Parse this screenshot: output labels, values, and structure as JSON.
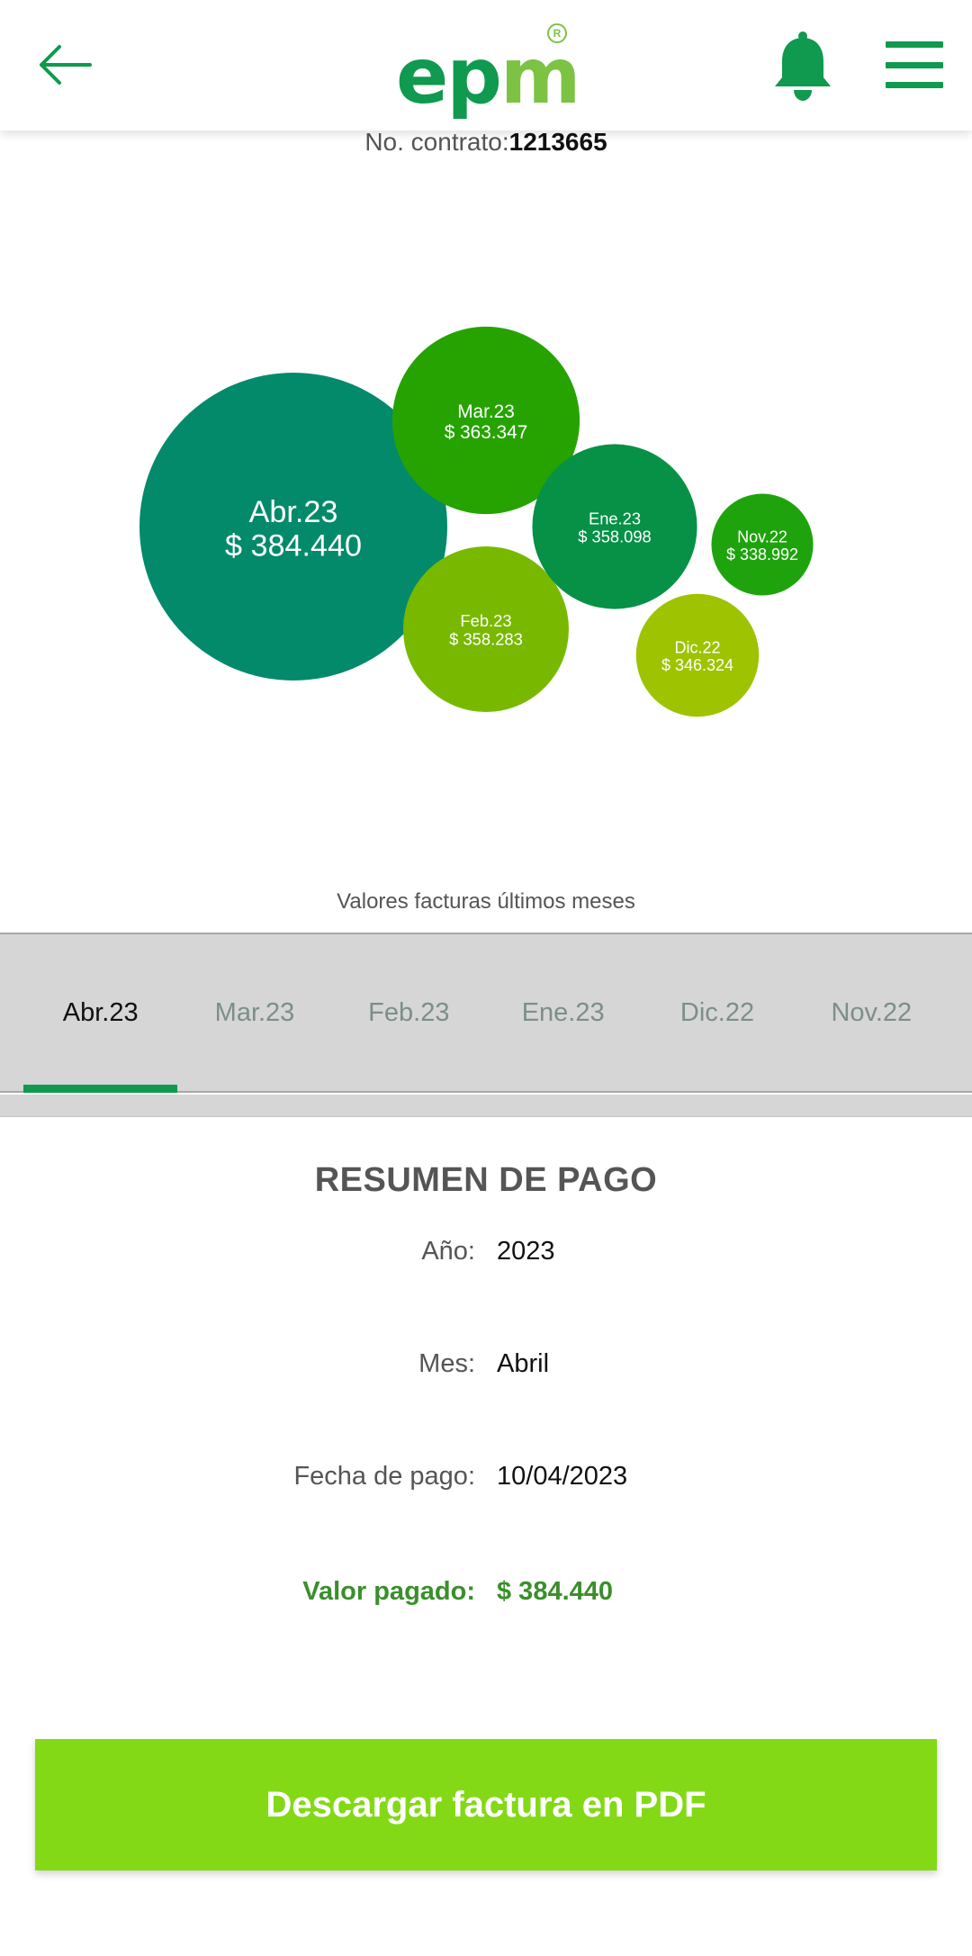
{
  "header": {
    "back_icon": "arrow-left-icon",
    "logo_text": "epm",
    "logo_registered": "R",
    "notifications_icon": "bell-icon",
    "menu_icon": "hamburger-menu-icon",
    "brand_color": "#0f9a4f",
    "accent_color": "#7cc243"
  },
  "contract": {
    "label": "No. contrato:",
    "number": "1213665"
  },
  "chart_data": {
    "type": "bubble",
    "caption": "Valores facturas últimos meses",
    "points": [
      {
        "month": "Abr.23",
        "value": 384440,
        "label": "$ 384.440",
        "color": "#038a6b"
      },
      {
        "month": "Mar.23",
        "value": 363347,
        "label": "$ 363.347",
        "color": "#26a300"
      },
      {
        "month": "Feb.23",
        "value": 358283,
        "label": "$ 358.283",
        "color": "#78b900"
      },
      {
        "month": "Ene.23",
        "value": 358098,
        "label": "$ 358.098",
        "color": "#079146"
      },
      {
        "month": "Dic.22",
        "value": 346324,
        "label": "$ 346.324",
        "color": "#9ec300"
      },
      {
        "month": "Nov.22",
        "value": 338992,
        "label": "$ 338.992",
        "color": "#1fa30d"
      }
    ]
  },
  "tabs": [
    {
      "label": "Abr.23",
      "active": true
    },
    {
      "label": "Mar.23",
      "active": false
    },
    {
      "label": "Feb.23",
      "active": false
    },
    {
      "label": "Ene.23",
      "active": false
    },
    {
      "label": "Dic.22",
      "active": false
    },
    {
      "label": "Nov.22",
      "active": false
    }
  ],
  "summary": {
    "title": "RESUMEN DE PAGO",
    "year_label": "Año:",
    "year_value": "2023",
    "month_label": "Mes:",
    "month_value": "Abril",
    "date_label": "Fecha de pago:",
    "date_value": "10/04/2023",
    "paid_label": "Valor pagado:",
    "paid_value": "$ 384.440"
  },
  "download": {
    "label": "Descargar factura en PDF",
    "color": "#84d917"
  }
}
